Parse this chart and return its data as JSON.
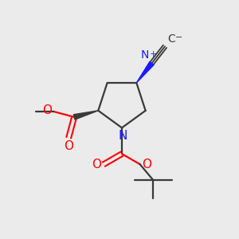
{
  "bg_color": "#ebebeb",
  "bond_color": "#3a3a3a",
  "N_color": "#1a1aff",
  "O_color": "#ff0000",
  "figsize": [
    3.0,
    3.0
  ],
  "dpi": 100,
  "xlim": [
    0,
    10
  ],
  "ylim": [
    0,
    10
  ]
}
